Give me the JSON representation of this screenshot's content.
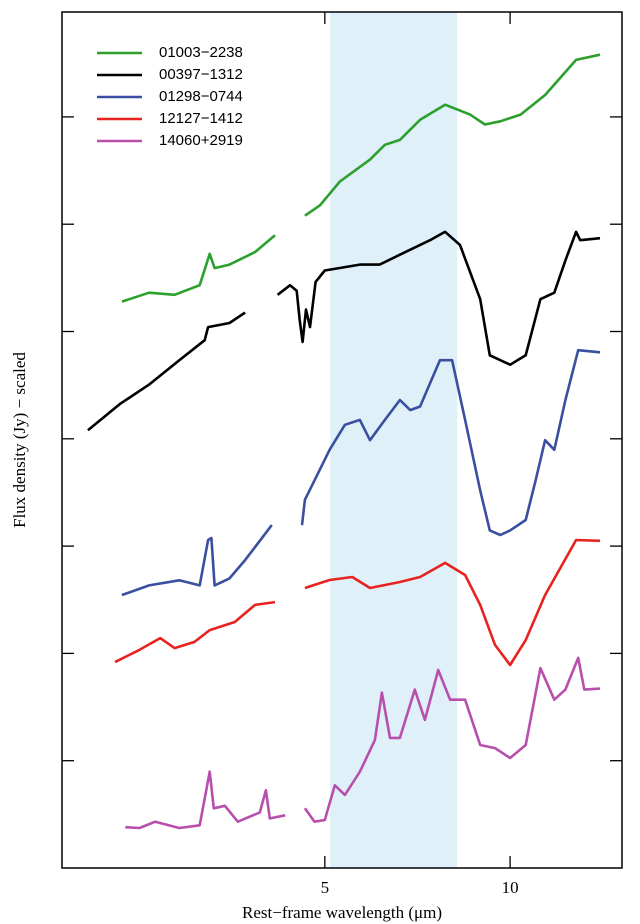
{
  "chart_data": {
    "type": "line",
    "x_label": "Rest−frame wavelength (μm)",
    "y_label": "Flux density (Jy) − scaled",
    "xscale": "log",
    "yscale": "log",
    "xlim": [
      1.87,
      15.2
    ],
    "ylim": [
      1,
      95000000
    ],
    "xticks": [
      5,
      10
    ],
    "yticks": [
      10,
      100,
      1000,
      10000,
      100000,
      1000000,
      10000000
    ],
    "band": [
      5.1,
      8.2
    ],
    "band_color": "#dff0f8",
    "legend": "upper left",
    "series": [
      {
        "name": "01003−2238",
        "color": "#2ca02c",
        "x": [
          2.34,
          2.59,
          2.85,
          3.13,
          3.25,
          3.31,
          3.5,
          3.85,
          4.15,
          null,
          4.64,
          4.91,
          5.29,
          5.92,
          6.26,
          6.62,
          7.14,
          7.84,
          8.61,
          9.1,
          9.64,
          10.4,
          11.4,
          12.8,
          14.0
        ],
        "values": [
          190000,
          230000,
          220000,
          270000,
          530000,
          390000,
          420000,
          550000,
          790000,
          null,
          1200000,
          1500000,
          2500000,
          4000000,
          5500000,
          6100000,
          9400000,
          13000000,
          10500000,
          8500000,
          9100000,
          10500000,
          16000000,
          34000000,
          38000000
        ]
      },
      {
        "name": "00397−1312",
        "color": "#000000",
        "x": [
          2.06,
          2.32,
          2.59,
          2.9,
          3.19,
          3.23,
          3.5,
          3.71,
          null,
          4.19,
          4.39,
          4.5,
          4.55,
          4.6,
          4.66,
          4.73,
          4.83,
          5.0,
          5.7,
          6.14,
          6.62,
          7.41,
          7.84,
          8.29,
          8.94,
          9.27,
          10.0,
          10.6,
          11.2,
          11.8,
          12.3,
          12.8,
          13.0,
          14.0
        ],
        "values": [
          12000,
          21000,
          32000,
          54000,
          83000,
          110000,
          120000,
          150000,
          null,
          220000,
          270000,
          240000,
          130000,
          80000,
          160000,
          110000,
          290000,
          370000,
          420000,
          420000,
          520000,
          710000,
          850000,
          640000,
          200000,
          60000,
          49000,
          60000,
          200000,
          230000,
          460000,
          850000,
          710000,
          740000
        ]
      },
      {
        "name": "01298−0744",
        "color": "#3b4fa0",
        "x": [
          2.34,
          2.59,
          2.9,
          3.13,
          3.23,
          3.27,
          3.31,
          3.5,
          3.71,
          4.1,
          null,
          4.59,
          4.64,
          4.81,
          5.09,
          5.39,
          5.7,
          5.92,
          6.26,
          6.62,
          6.88,
          7.14,
          7.69,
          8.05,
          8.45,
          8.94,
          9.27,
          9.64,
          10.0,
          10.6,
          11.0,
          11.4,
          11.8,
          12.3,
          12.9,
          14.0
        ],
        "values": [
          350,
          430,
          480,
          430,
          1140,
          1190,
          430,
          500,
          740,
          1570,
          null,
          1570,
          2700,
          4100,
          7900,
          13500,
          15000,
          9700,
          15000,
          23000,
          18500,
          20000,
          54000,
          54000,
          15000,
          3300,
          1400,
          1270,
          1400,
          1750,
          4100,
          9700,
          7900,
          23000,
          67000,
          64000
        ]
      },
      {
        "name": "12127−1412",
        "color": "#e8231f",
        "x": [
          2.28,
          2.5,
          2.7,
          2.85,
          3.07,
          3.25,
          3.57,
          3.85,
          4.15,
          null,
          4.64,
          5.09,
          5.54,
          5.92,
          6.62,
          7.14,
          7.84,
          8.45,
          8.94,
          9.45,
          10.0,
          10.6,
          11.4,
          12.8,
          14.0
        ],
        "values": [
          83,
          108,
          139,
          112,
          128,
          165,
          196,
          283,
          301,
          null,
          407,
          483,
          515,
          407,
          463,
          515,
          697,
          538,
          283,
          120,
          78,
          133,
          350,
          1140,
          1120
        ]
      },
      {
        "name": "14060+2919",
        "color": "#b84fad",
        "x": [
          2.37,
          2.5,
          2.65,
          2.9,
          3.13,
          3.25,
          3.3,
          3.44,
          3.61,
          3.92,
          4.01,
          4.07,
          4.31,
          null,
          4.64,
          4.81,
          5.0,
          5.19,
          5.39,
          5.7,
          6.03,
          6.19,
          6.38,
          6.62,
          7.0,
          7.27,
          7.64,
          7.99,
          8.45,
          8.94,
          9.45,
          10.0,
          10.6,
          11.2,
          11.8,
          12.3,
          12.9,
          13.2,
          14.0
        ],
        "values": [
          2.4,
          2.36,
          2.7,
          2.36,
          2.5,
          7.9,
          3.6,
          3.8,
          2.7,
          3.3,
          5.3,
          2.9,
          3.1,
          null,
          3.6,
          2.7,
          2.8,
          5.9,
          4.8,
          7.9,
          15.6,
          43,
          16.3,
          16.3,
          46,
          24,
          70,
          37,
          37,
          14,
          13.1,
          10.6,
          14,
          73,
          37,
          46,
          91,
          46,
          47
        ]
      }
    ]
  }
}
